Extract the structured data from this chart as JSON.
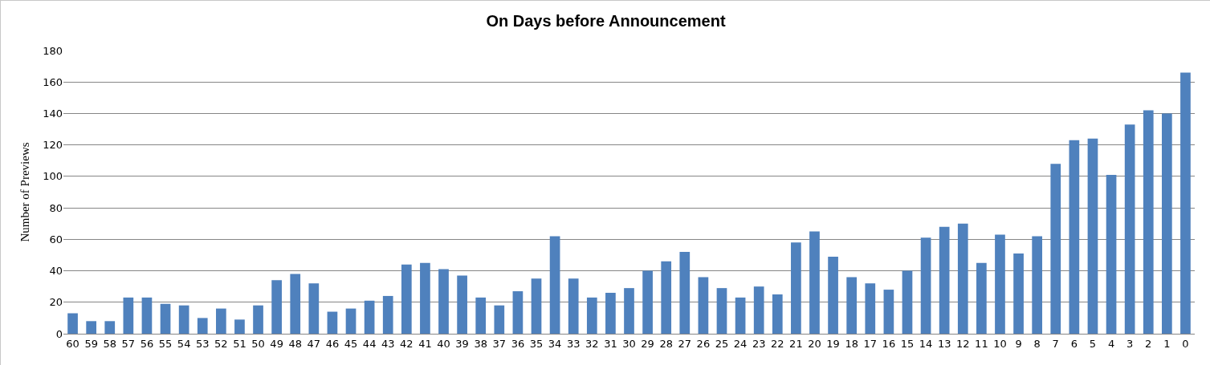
{
  "chart_data": {
    "type": "bar",
    "title": "On Days before Announcement",
    "ylabel": "Number of Previews",
    "categories": [
      "60",
      "59",
      "58",
      "57",
      "56",
      "55",
      "54",
      "53",
      "52",
      "51",
      "50",
      "49",
      "48",
      "47",
      "46",
      "45",
      "44",
      "43",
      "42",
      "41",
      "40",
      "39",
      "38",
      "37",
      "36",
      "35",
      "34",
      "33",
      "32",
      "31",
      "30",
      "29",
      "28",
      "27",
      "26",
      "25",
      "24",
      "23",
      "22",
      "21",
      "20",
      "19",
      "18",
      "17",
      "16",
      "15",
      "14",
      "13",
      "12",
      "11",
      "10",
      "9",
      "8",
      "7",
      "6",
      "5",
      "4",
      "3",
      "2",
      "1",
      "0"
    ],
    "values": [
      13,
      8,
      8,
      23,
      23,
      19,
      18,
      10,
      16,
      9,
      18,
      34,
      38,
      32,
      14,
      16,
      21,
      24,
      44,
      45,
      41,
      37,
      23,
      18,
      27,
      35,
      62,
      35,
      23,
      26,
      29,
      40,
      46,
      52,
      36,
      29,
      23,
      30,
      25,
      58,
      65,
      49,
      36,
      32,
      28,
      40,
      61,
      68,
      70,
      45,
      63,
      51,
      62,
      108,
      123,
      124,
      101,
      133,
      142,
      140,
      166
    ],
    "color": "#4f81bd",
    "ylim": [
      0,
      180
    ],
    "yticks": [
      0,
      20,
      40,
      60,
      80,
      100,
      120,
      140,
      160,
      180
    ],
    "grid": "y"
  }
}
